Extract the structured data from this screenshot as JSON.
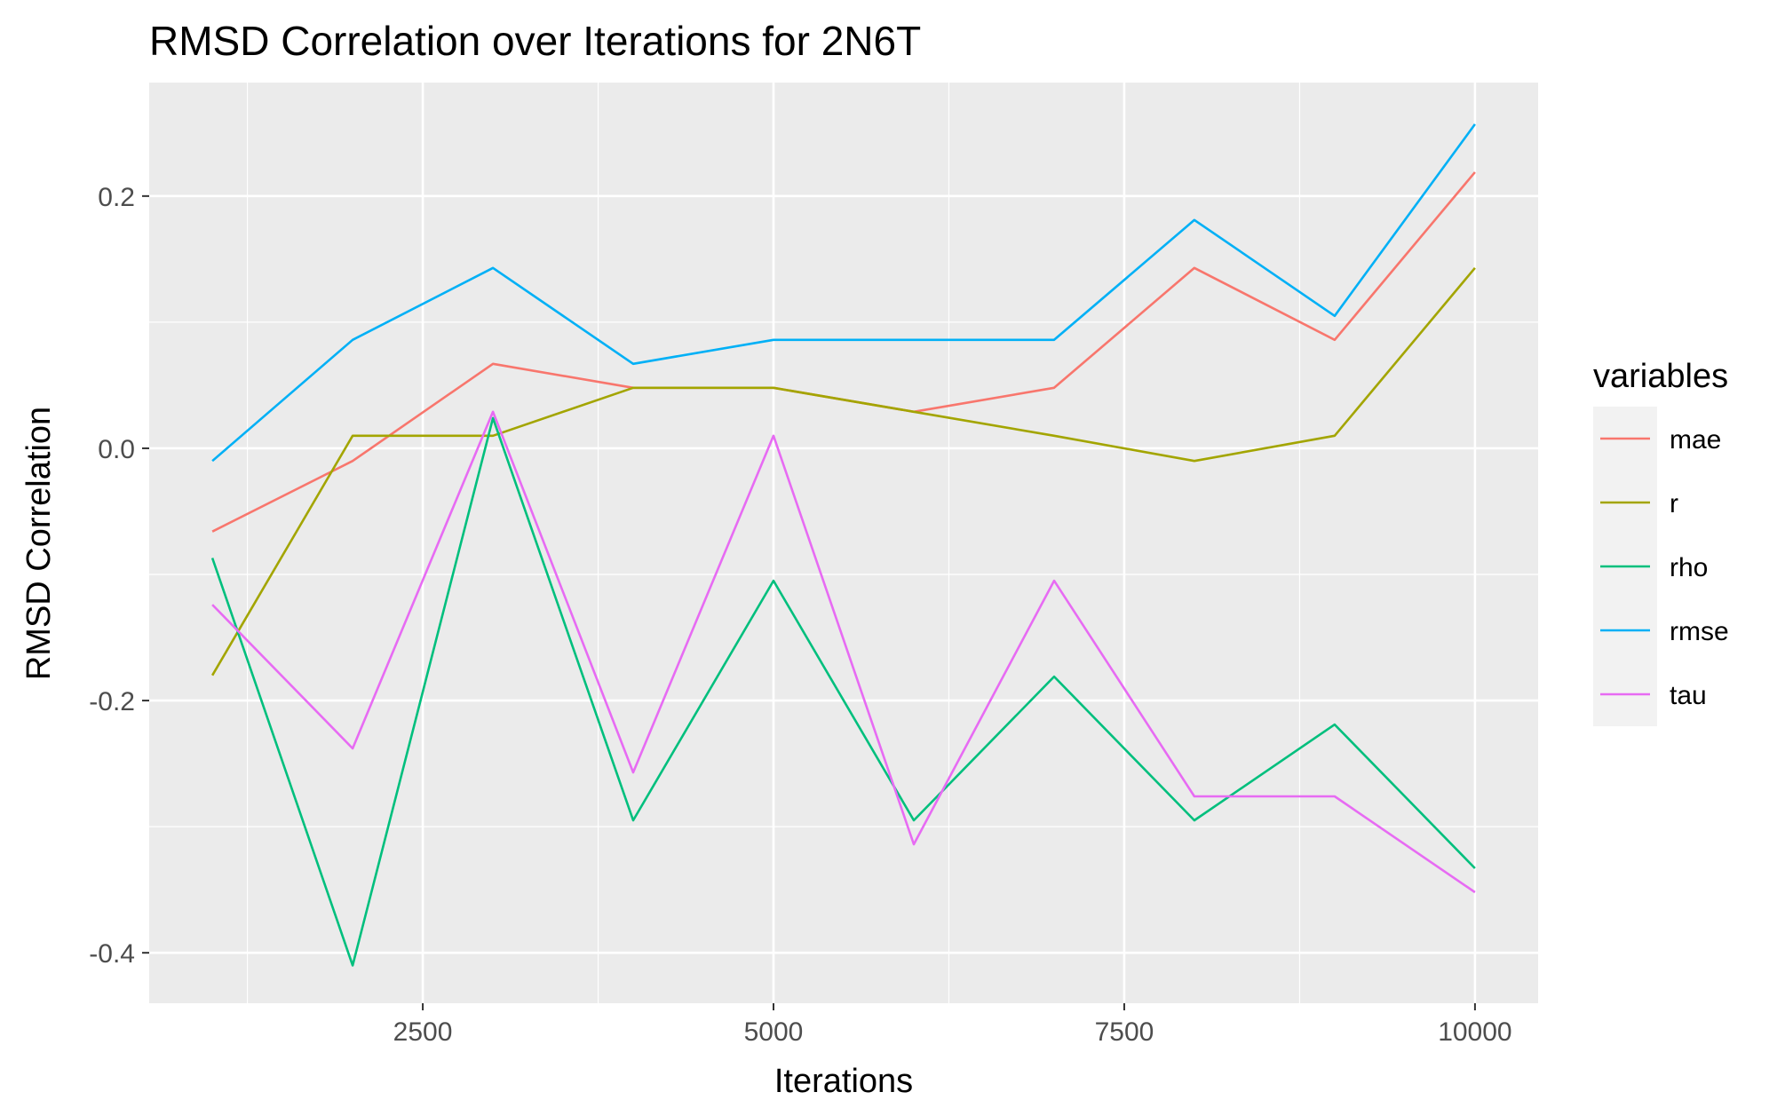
{
  "chart_data": {
    "type": "line",
    "title": "RMSD Correlation over Iterations for 2N6T",
    "xlabel": "Iterations",
    "ylabel": "RMSD Correlation",
    "xlim": [
      550,
      10450
    ],
    "ylim": [
      -0.44,
      0.29
    ],
    "x_ticks": [
      2500,
      5000,
      7500,
      10000
    ],
    "x_tick_labels": [
      "2500",
      "5000",
      "7500",
      "10000"
    ],
    "y_ticks": [
      -0.4,
      -0.2,
      0.0,
      0.2
    ],
    "y_tick_labels": [
      "-0.4",
      "-0.2",
      "0.0",
      "0.2"
    ],
    "grid": true,
    "background": "#ebebeb",
    "legend": {
      "title": "variables",
      "position": "right"
    },
    "x": [
      1000,
      2000,
      3000,
      4000,
      5000,
      6000,
      7000,
      8000,
      9000,
      10000
    ],
    "series": [
      {
        "name": "mae",
        "color": "#F8766D",
        "values": [
          -0.066,
          -0.01,
          0.067,
          0.048,
          0.048,
          0.029,
          0.048,
          0.143,
          0.086,
          0.219
        ]
      },
      {
        "name": "r",
        "color": "#A3A500",
        "values": [
          -0.18,
          0.01,
          0.01,
          0.048,
          0.048,
          0.029,
          0.01,
          -0.01,
          0.01,
          0.143
        ]
      },
      {
        "name": "rho",
        "color": "#00BF7D",
        "values": [
          -0.087,
          -0.41,
          0.024,
          -0.295,
          -0.105,
          -0.295,
          -0.181,
          -0.295,
          -0.219,
          -0.333
        ]
      },
      {
        "name": "rmse",
        "color": "#00B0F6",
        "values": [
          -0.01,
          0.086,
          0.143,
          0.067,
          0.086,
          0.086,
          0.086,
          0.181,
          0.105,
          0.257
        ]
      },
      {
        "name": "tau",
        "color": "#E76BF3",
        "values": [
          -0.124,
          -0.238,
          0.029,
          -0.257,
          0.01,
          -0.314,
          -0.105,
          -0.276,
          -0.276,
          -0.352
        ]
      }
    ]
  }
}
